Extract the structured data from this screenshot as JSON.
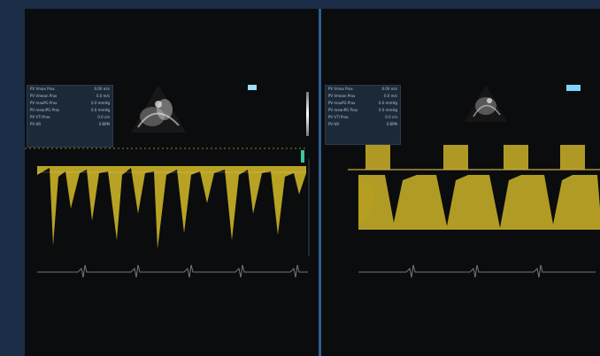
{
  "left_panel": {
    "measurements": [
      {
        "label": "PV Vmax Prox",
        "value": "0.00 m/s"
      },
      {
        "label": "PV Vmean Prox",
        "value": "0.0 m/s"
      },
      {
        "label": "PV maxPG Prox",
        "value": "0.0 mmHg"
      },
      {
        "label": "PV meanPG Prox",
        "value": "0.0 mmHg"
      },
      {
        "label": "PV VTI Prox",
        "value": "0.0 cm"
      },
      {
        "label": "PV HR",
        "value": "0 BPM"
      }
    ]
  },
  "right_panel": {
    "measurements": [
      {
        "label": "PV Vmax Prox",
        "value": "0.00 m/s"
      },
      {
        "label": "PV Vmean Prox",
        "value": "0.0 m/s"
      },
      {
        "label": "PV maxPG Prox",
        "value": "0.0 mmHg"
      },
      {
        "label": "PV meanPG Prox",
        "value": "0.0 mmHg"
      },
      {
        "label": "PV VTI Prox",
        "value": "0.0 cm"
      },
      {
        "label": "PV HR",
        "value": "0 BPM"
      }
    ]
  },
  "colors": {
    "doppler": "#e8cf2c",
    "divider": "#2c5f8d",
    "frame": "#1b2d47",
    "screen": "#0b0c0e"
  }
}
